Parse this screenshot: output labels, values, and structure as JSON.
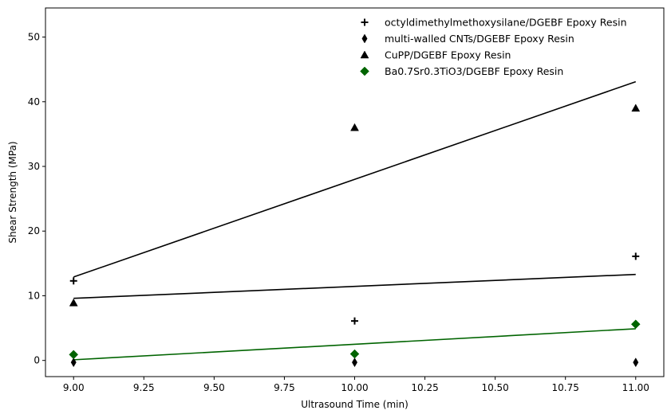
{
  "chart_data": {
    "type": "scatter",
    "title": "",
    "xlabel": "Ultrasound Time (min)",
    "ylabel": "Shear Strength (MPa)",
    "xlim": [
      8.9,
      11.1
    ],
    "ylim": [
      -2.5,
      54.5
    ],
    "xticks": [
      9.0,
      9.25,
      9.5,
      9.75,
      10.0,
      10.25,
      10.5,
      10.75,
      11.0
    ],
    "xtick_labels": [
      "9.00",
      "9.25",
      "9.50",
      "9.75",
      "10.00",
      "10.25",
      "10.50",
      "10.75",
      "11.00"
    ],
    "yticks": [
      0,
      10,
      20,
      30,
      40,
      50
    ],
    "ytick_labels": [
      "0",
      "10",
      "20",
      "30",
      "40",
      "50"
    ],
    "grid": false,
    "legend_position": "top-right",
    "series": [
      {
        "name": "octyldimethylmethoxysilane/DGEBF Epoxy Resin",
        "marker": "plus",
        "color": "#000000",
        "x": [
          9.0,
          10.0,
          11.0
        ],
        "y": [
          12.3,
          6.1,
          16.1
        ]
      },
      {
        "name": "multi-walled CNTs/DGEBF Epoxy Resin",
        "marker": "thin-diamond",
        "color": "#000000",
        "x": [
          9.0,
          10.0,
          11.0
        ],
        "y": [
          -0.3,
          -0.3,
          -0.3
        ]
      },
      {
        "name": "CuPP/DGEBF Epoxy Resin",
        "marker": "triangle",
        "color": "#000000",
        "x": [
          9.0,
          10.0,
          11.0
        ],
        "y": [
          8.9,
          36.0,
          39.0
        ]
      },
      {
        "name": "Ba0.7Sr0.3TiO3/DGEBF Epoxy Resin",
        "marker": "diamond",
        "color": "#006400",
        "x": [
          9.0,
          10.0,
          11.0
        ],
        "y": [
          0.9,
          1.0,
          5.6
        ]
      }
    ],
    "trend_lines": [
      {
        "color": "#000000",
        "x": [
          9.0,
          11.0
        ],
        "y": [
          12.9,
          43.1
        ]
      },
      {
        "color": "#000000",
        "x": [
          9.0,
          11.0
        ],
        "y": [
          9.6,
          13.3
        ]
      },
      {
        "color": "#006400",
        "x": [
          9.0,
          11.0
        ],
        "y": [
          0.1,
          4.9
        ]
      }
    ]
  }
}
